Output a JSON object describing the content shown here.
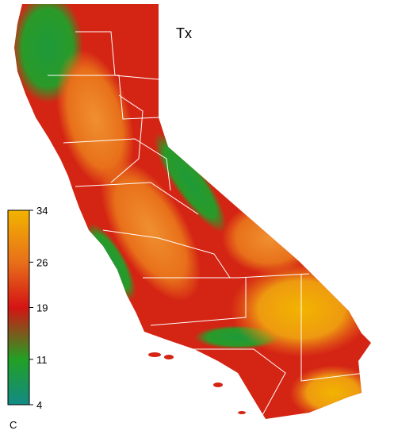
{
  "map": {
    "title": "Tx",
    "colorbar": {
      "lim": [
        4,
        34
      ],
      "ticks": [
        34,
        26,
        19,
        11,
        4
      ],
      "colors": [
        "#f2b400",
        "#e8701a",
        "#d41414",
        "#22a024",
        "#128a86"
      ],
      "label": "C"
    }
  }
}
